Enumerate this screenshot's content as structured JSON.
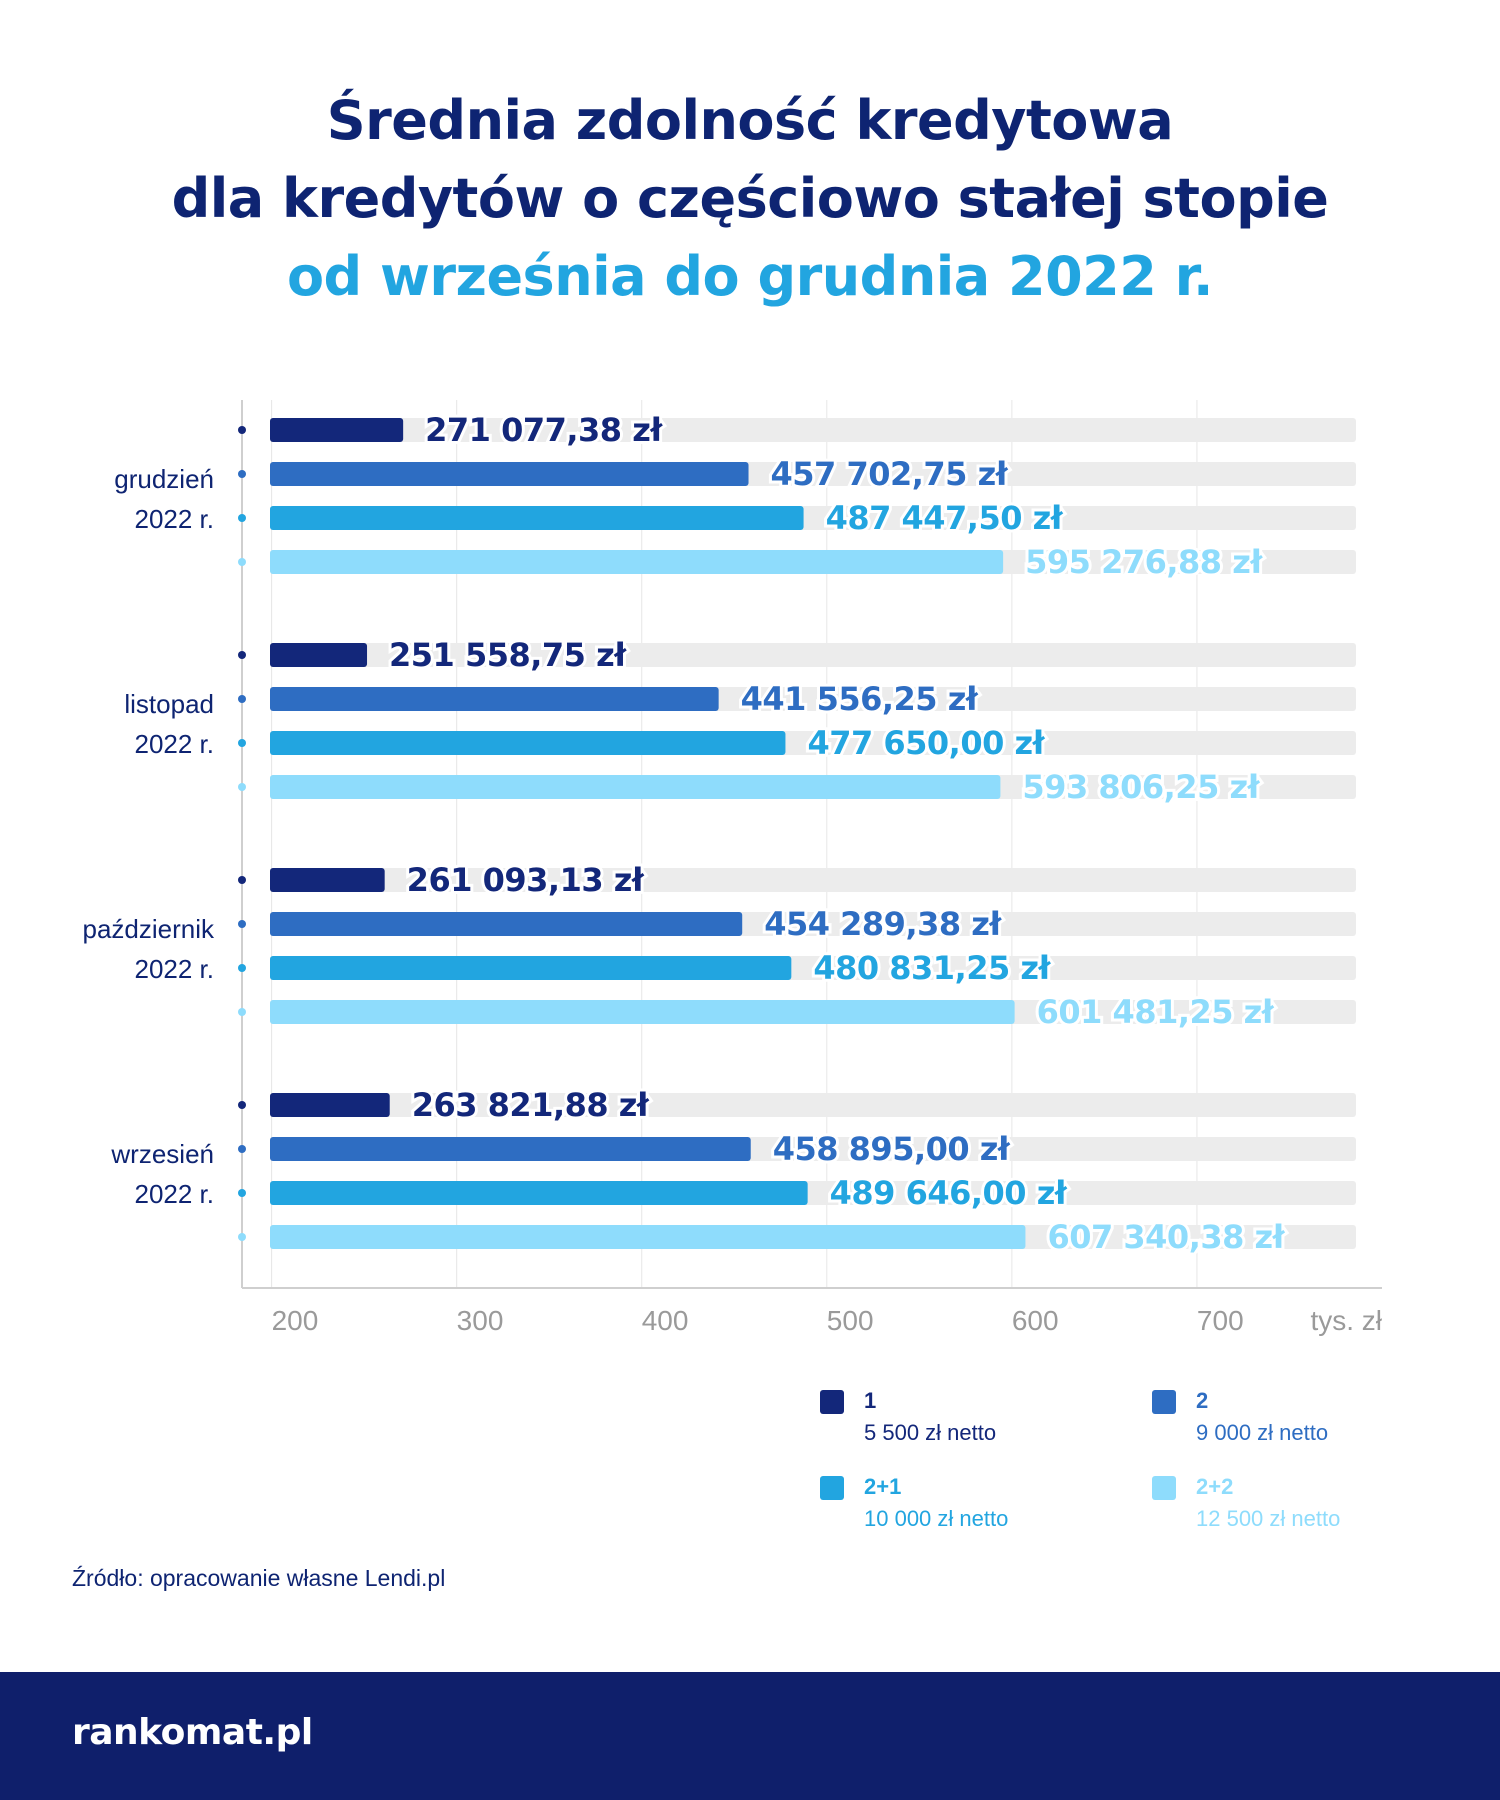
{
  "title": {
    "line1": "Średnia zdolność kredytowa",
    "line2": "dla kredytów o częściowo stałej stopie",
    "line3": "od września do grudnia 2022 r."
  },
  "chart_data": {
    "type": "bar",
    "orientation": "horizontal",
    "categories": [
      [
        "grudzień",
        "2022 r."
      ],
      [
        "listopad",
        "2022 r."
      ],
      [
        "październik",
        "2022 r."
      ],
      [
        "wrzesień",
        "2022 r."
      ]
    ],
    "series": [
      {
        "name": "1",
        "sub": "5 500 zł netto",
        "color": "#13277a",
        "values": [
          271077.38,
          251558.75,
          261093.13,
          263821.88
        ],
        "labels": [
          "271 077,38 zł",
          "251 558,75 zł",
          "261 093,13 zł",
          "263 821,88 zł"
        ]
      },
      {
        "name": "2",
        "sub": "9 000 zł netto",
        "color": "#2e6dc2",
        "values": [
          457702.75,
          441556.25,
          454289.38,
          458895.0
        ],
        "labels": [
          "457 702,75 zł",
          "441 556,25 zł",
          "454 289,38 zł",
          "458 895,00 zł"
        ]
      },
      {
        "name": "2+1",
        "sub": "10 000 zł netto",
        "color": "#22a5e0",
        "values": [
          487447.5,
          477650.0,
          480831.25,
          489646.0
        ],
        "labels": [
          "487 447,50 zł",
          "477 650,00 zł",
          "480 831,25 zł",
          "489 646,00 zł"
        ]
      },
      {
        "name": "2+2",
        "sub": "12 500 zł netto",
        "color": "#8edcfc",
        "values": [
          595276.88,
          593806.25,
          601481.25,
          607340.38
        ],
        "labels": [
          "595 276,88 zł",
          "593 806,25 zł",
          "601 481,25 zł",
          "607 340,38 zł"
        ]
      }
    ],
    "xticks": [
      "200",
      "300",
      "400",
      "500",
      "600",
      "700"
    ],
    "xunit": "tys. zł",
    "xlim": [
      184000,
      800000
    ],
    "grid": true,
    "legend": "bottom-right"
  },
  "source": "Źródło: opracowanie własne Lendi.pl",
  "brand": "rankomat.pl",
  "colors": {
    "dark_navy": "#0e2472",
    "accent": "#22a5e0",
    "track": "#ececec",
    "footer": "#0f1f6b"
  }
}
